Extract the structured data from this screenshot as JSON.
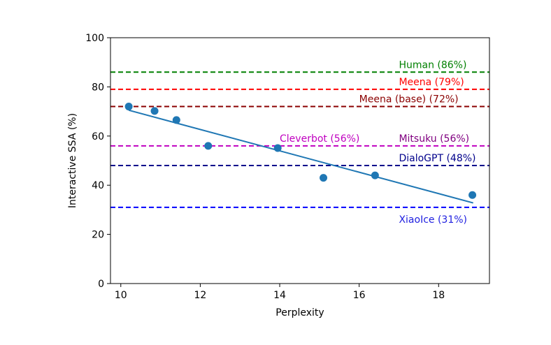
{
  "chart_data": {
    "type": "scatter",
    "title": "",
    "xlabel": "Perplexity",
    "ylabel": "Interactive SSA (%)",
    "xlim": [
      9.74,
      19.28
    ],
    "ylim": [
      0,
      100
    ],
    "xticks": [
      10,
      12,
      14,
      16,
      18
    ],
    "yticks": [
      0,
      20,
      40,
      60,
      80,
      100
    ],
    "grid": false,
    "point_color": "#1f77b4",
    "points": [
      {
        "x": 10.2,
        "y": 72
      },
      {
        "x": 10.85,
        "y": 70.2
      },
      {
        "x": 11.4,
        "y": 66.5
      },
      {
        "x": 12.2,
        "y": 56
      },
      {
        "x": 13.95,
        "y": 55.1
      },
      {
        "x": 15.1,
        "y": 43
      },
      {
        "x": 16.4,
        "y": 44
      },
      {
        "x": 18.85,
        "y": 36
      }
    ],
    "fit_line": {
      "x": [
        10.2,
        18.87
      ],
      "y": [
        70.5,
        32.8
      ],
      "color": "#1f77b4"
    },
    "reference_lines": [
      {
        "label": "Human (86%)",
        "y": 86,
        "color": "#008000",
        "label_color": "#008000",
        "label_x": 17.0,
        "label_pos": "above"
      },
      {
        "label": "Meena (79%)",
        "y": 79,
        "color": "#ff0000",
        "label_color": "#ff0000",
        "label_x": 17.0,
        "label_pos": "above"
      },
      {
        "label": "Meena (base) (72%)",
        "y": 72,
        "color": "#8b0000",
        "label_color": "#8b0000",
        "label_x": 16.0,
        "label_pos": "above"
      },
      {
        "label": "Mitsuku (56%)",
        "y": 56,
        "color": "#c000c0",
        "label_color": "#800080",
        "label_x": 17.0,
        "label_pos": "above"
      },
      {
        "label": "DialoGPT (48%)",
        "y": 48,
        "color": "#00008b",
        "label_color": "#00008b",
        "label_x": 17.0,
        "label_pos": "above"
      },
      {
        "label": "XiaoIce (31%)",
        "y": 31,
        "color": "#0000ff",
        "label_color": "#2020e0",
        "label_x": 17.0,
        "label_pos": "below"
      }
    ],
    "annotations": [
      {
        "text": "Cleverbot (56%)",
        "x": 14.0,
        "y": 56,
        "color": "#c000c0"
      }
    ]
  }
}
